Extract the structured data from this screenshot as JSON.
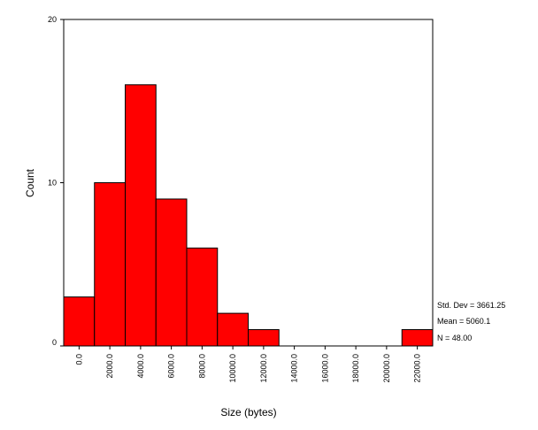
{
  "chart_data": {
    "type": "bar",
    "subtype": "histogram",
    "xlabel": "Size (bytes)",
    "ylabel": "Count",
    "ylim": [
      0,
      20
    ],
    "yticks": [
      "0",
      "10",
      "20"
    ],
    "categories": [
      "0.0",
      "2000.0",
      "4000.0",
      "6000.0",
      "8000.0",
      "10000.0",
      "12000.0",
      "14000.0",
      "16000.0",
      "18000.0",
      "20000.0",
      "22000.0"
    ],
    "values": [
      3,
      10,
      16,
      9,
      6,
      2,
      1,
      0,
      0,
      0,
      0,
      1
    ],
    "bar_color": "#ff0000",
    "grid": false,
    "stats": [
      "Std. Dev = 3661.25",
      "Mean = 5060.1",
      "N = 48.00"
    ]
  }
}
